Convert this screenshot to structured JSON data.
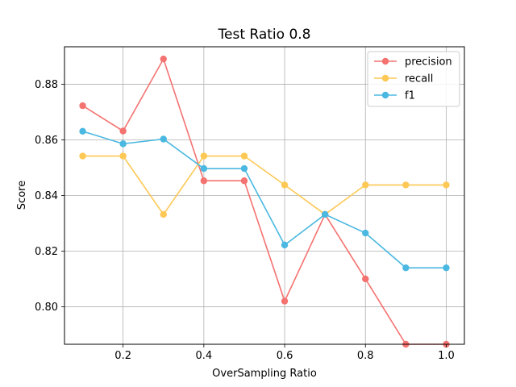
{
  "chart_data": {
    "type": "line",
    "title": "Test Ratio 0.8",
    "xlabel": "OverSampling Ratio",
    "ylabel": "Score",
    "x": [
      0.1,
      0.2,
      0.3,
      0.4,
      0.5,
      0.6,
      0.7,
      0.8,
      0.9,
      1.0
    ],
    "xlim": [
      0.055,
      1.045
    ],
    "ylim": [
      0.7865,
      0.8935
    ],
    "xticks": [
      0.2,
      0.4,
      0.6,
      0.8,
      1.0
    ],
    "xtick_labels": [
      "0.2",
      "0.4",
      "0.6",
      "0.8",
      "1.0"
    ],
    "yticks": [
      0.8,
      0.82,
      0.84,
      0.86,
      0.88
    ],
    "ytick_labels": [
      "0.80",
      "0.82",
      "0.84",
      "0.86",
      "0.88"
    ],
    "grid": true,
    "legend_position": "top-right",
    "series": [
      {
        "name": "precision",
        "color": "#f47270",
        "values": [
          0.8723,
          0.8632,
          0.8891,
          0.8453,
          0.8453,
          0.802,
          0.8332,
          0.81,
          0.7865,
          0.7865
        ]
      },
      {
        "name": "recall",
        "color": "#fdc854",
        "values": [
          0.8542,
          0.8542,
          0.8332,
          0.8542,
          0.8542,
          0.8438,
          0.8332,
          0.8438,
          0.8438,
          0.8438
        ]
      },
      {
        "name": "f1",
        "color": "#4ab8e0",
        "values": [
          0.8631,
          0.8586,
          0.8603,
          0.8497,
          0.8497,
          0.8222,
          0.8332,
          0.8265,
          0.814,
          0.814
        ]
      }
    ]
  }
}
